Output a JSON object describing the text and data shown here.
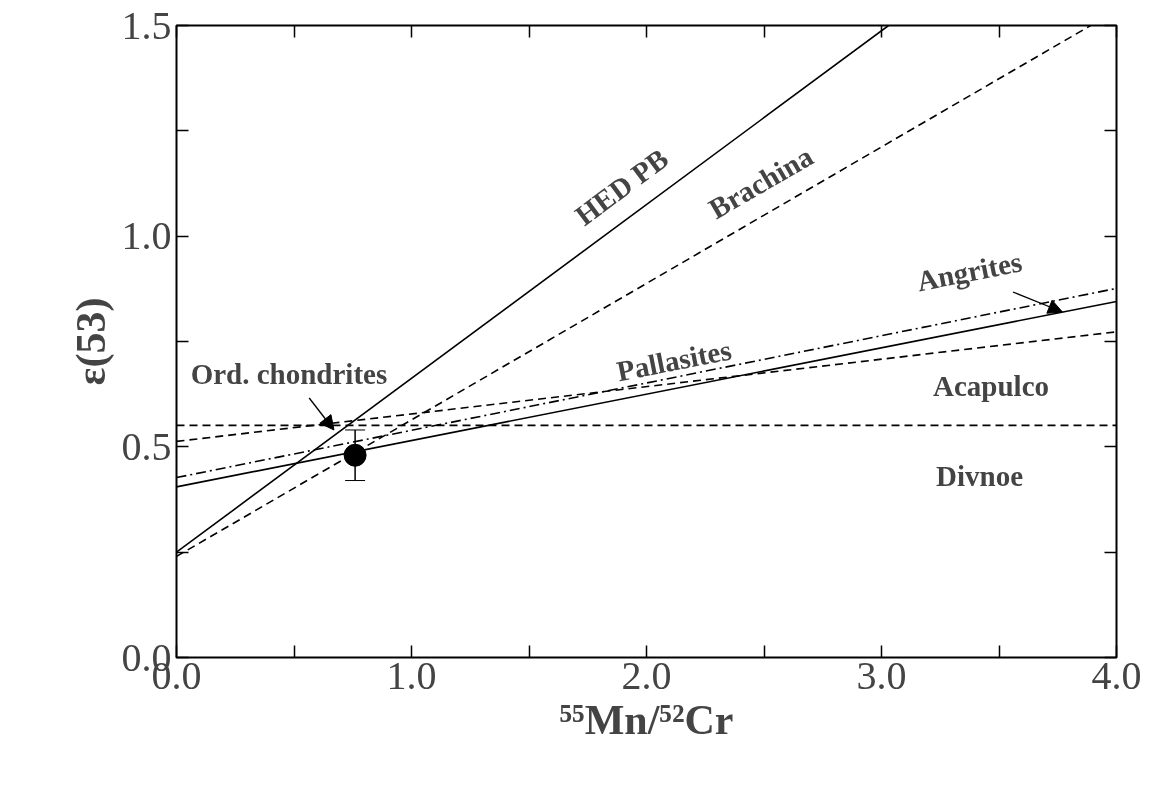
{
  "chart_data": {
    "type": "line",
    "xlabel": "⁵⁵Mn/⁵²Cr",
    "ylabel": "ε(53)",
    "xlim": [
      0,
      4
    ],
    "ylim": [
      0,
      1.5
    ],
    "xticks": [
      {
        "value": 0,
        "label": "0.0"
      },
      {
        "value": 0.5,
        "label": null
      },
      {
        "value": 1,
        "label": "1.0"
      },
      {
        "value": 1.5,
        "label": null
      },
      {
        "value": 2,
        "label": "2.0"
      },
      {
        "value": 2.5,
        "label": null
      },
      {
        "value": 3,
        "label": "3.0"
      },
      {
        "value": 3.5,
        "label": null
      },
      {
        "value": 4,
        "label": "4.0"
      }
    ],
    "yticks": [
      {
        "value": 0,
        "label": "0.0"
      },
      {
        "value": 0.25,
        "label": null
      },
      {
        "value": 0.5,
        "label": "0.5"
      },
      {
        "value": 0.75,
        "label": null
      },
      {
        "value": 1,
        "label": "1.0"
      },
      {
        "value": 1.25,
        "label": null
      },
      {
        "value": 1.5,
        "label": "1.5"
      }
    ],
    "grid": false,
    "series": [
      {
        "color": "#000000",
        "line_style": "solid",
        "x": [
          0,
          3.03
        ],
        "values": [
          0.25,
          1.5
        ]
      },
      {
        "color": "#000000",
        "line_style": "dashed",
        "x": [
          0,
          3.89
        ],
        "values": [
          0.24,
          1.5
        ]
      },
      {
        "color": "#000000",
        "line_style": "solid",
        "x": [
          0,
          4
        ],
        "values": [
          0.405,
          0.845
        ]
      },
      {
        "color": "#000000",
        "line_style": "dashdot",
        "x": [
          0,
          4
        ],
        "values": [
          0.427,
          0.876
        ]
      },
      {
        "color": "#000000",
        "line_style": "dashed",
        "x": [
          0,
          4
        ],
        "values": [
          0.513,
          0.773
        ]
      },
      {
        "color": "#000000",
        "line_style": "dashed",
        "x": [
          0,
          4
        ],
        "values": [
          0.551,
          0.551
        ]
      },
      {
        "type": "scatter",
        "color": "#000000",
        "marker": "circle",
        "x": [
          0.76
        ],
        "values": [
          0.48
        ],
        "errors": [
          0.06
        ]
      }
    ],
    "annotations": [
      {
        "text": "HED PB",
        "x": 1.97,
        "y": 1.06
      },
      {
        "text": "Brachina",
        "x": 2.55,
        "y": 1.066
      },
      {
        "text": "Pallasites",
        "x": 2.14,
        "y": 0.64
      },
      {
        "text": "Angrites",
        "x": 3.77,
        "y": 0.82
      },
      {
        "text": "Acapulco",
        "x": 3.7,
        "y": 0.753
      },
      {
        "text": "Divnoe",
        "x": 3.63,
        "y": 0.551
      },
      {
        "text": "Ord. chondrites",
        "x": 0.67,
        "y": 0.54
      }
    ]
  }
}
